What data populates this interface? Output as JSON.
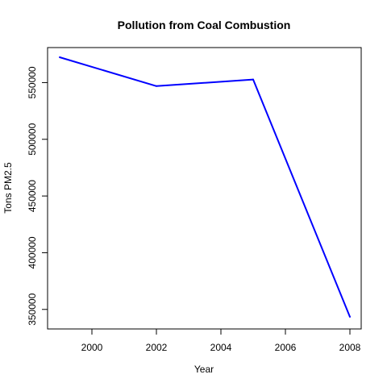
{
  "chart_data": {
    "type": "line",
    "title": "Pollution from Coal Combustion",
    "xlabel": "Year",
    "ylabel": "Tons PM2.5",
    "x": [
      1999,
      2002,
      2005,
      2008
    ],
    "series": [
      {
        "values": [
          572350,
          546900,
          552700,
          343440
        ],
        "color": "#0000ff"
      }
    ],
    "xlim": [
      1999,
      2008
    ],
    "ylim": [
      343440,
      572350
    ],
    "xticks": [
      2000,
      2002,
      2004,
      2006,
      2008
    ],
    "xtick_labels": [
      "2000",
      "2002",
      "2004",
      "2006",
      "2008"
    ],
    "yticks": [
      350000,
      400000,
      450000,
      500000,
      550000
    ],
    "ytick_labels": [
      "350000",
      "400000",
      "450000",
      "500000",
      "550000"
    ],
    "grid": false,
    "legend": "none"
  }
}
